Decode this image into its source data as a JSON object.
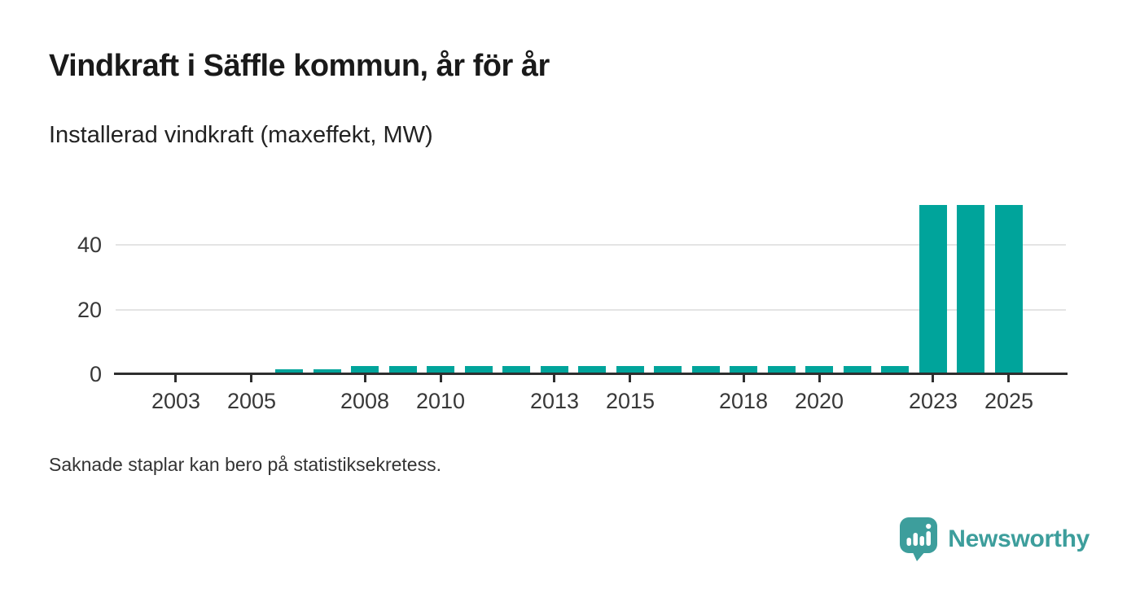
{
  "header": {
    "title": "Vindkraft i Säffle kommun, år för år",
    "subtitle": "Installerad vindkraft (maxeffekt, MW)"
  },
  "chart_data": {
    "type": "bar",
    "title": "Vindkraft i Säffle kommun, år för år",
    "subtitle": "Installerad vindkraft (maxeffekt, MW)",
    "xlabel": "",
    "ylabel": "Installerad vindkraft (maxeffekt, MW)",
    "categories": [
      2006,
      2007,
      2008,
      2009,
      2010,
      2011,
      2012,
      2013,
      2014,
      2015,
      2016,
      2017,
      2018,
      2019,
      2020,
      2021,
      2022,
      2023,
      2024,
      2025
    ],
    "values": [
      1.25,
      1.25,
      2.25,
      2.25,
      2.25,
      2.25,
      2.25,
      2.25,
      2.25,
      2.25,
      2.25,
      2.25,
      2.25,
      2.25,
      2.25,
      2.25,
      2.25,
      52,
      52,
      52
    ],
    "x_domain": [
      2002,
      2026
    ],
    "ylim": [
      0,
      55
    ],
    "yticks": [
      0,
      20,
      40
    ],
    "xtick_labels": [
      "2003",
      "2005",
      "2008",
      "2010",
      "2013",
      "2015",
      "2018",
      "2020",
      "2023",
      "2025"
    ],
    "grid": "horizontal-light",
    "legend": "none",
    "bar_color": "#00a49b",
    "axis_color": "#2e2e2e",
    "gridline_color": "#e4e4e4",
    "label_color": "#383838"
  },
  "footer": {
    "note": "Saknade staplar kan bero på statistiksekretess."
  },
  "branding": {
    "name": "Newsworthy",
    "icon": "speech-bubble-bar-chart-icon",
    "color": "#3d9e9c"
  }
}
